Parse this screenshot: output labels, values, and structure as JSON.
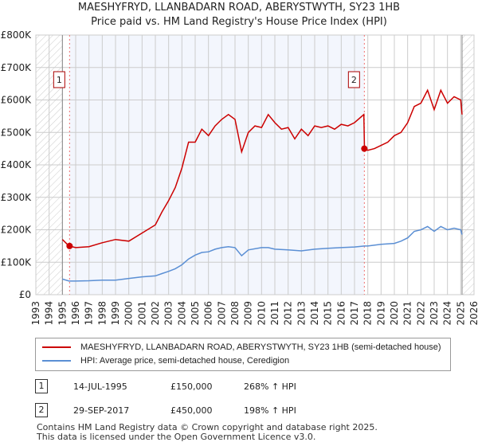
{
  "chart_data": {
    "type": "line",
    "title": "MAESHYFRYD, LLANBADARN ROAD, ABERYSTWYTH, SY23 1HB",
    "subtitle": "Price paid vs. HM Land Registry's House Price Index (HPI)",
    "xlim": [
      1993,
      2026
    ],
    "ylim": [
      0,
      800000
    ],
    "yticks": [
      0,
      100000,
      200000,
      300000,
      400000,
      500000,
      600000,
      700000,
      800000
    ],
    "ytick_labels": [
      "£0",
      "£100K",
      "£200K",
      "£300K",
      "£400K",
      "£500K",
      "£600K",
      "£700K",
      "£800K"
    ],
    "xticks": [
      "1993",
      "1994",
      "1995",
      "1996",
      "1997",
      "1998",
      "1999",
      "2000",
      "2001",
      "2002",
      "2003",
      "2004",
      "2005",
      "2006",
      "2007",
      "2008",
      "2009",
      "2010",
      "2011",
      "2012",
      "2013",
      "2014",
      "2015",
      "2016",
      "2017",
      "2018",
      "2019",
      "2020",
      "2021",
      "2022",
      "2023",
      "2024",
      "2025",
      "2026"
    ],
    "grid": true,
    "data_start": 1995.0,
    "data_end": 2025.1,
    "series": [
      {
        "name": "MAESHYFRYD, LLANBADARN ROAD, ABERYSTWYTH, SY23 1HB (semi-detached house)",
        "color": "#cc0000",
        "x": [
          1995,
          1995.5,
          1996,
          1997,
          1998,
          1999,
          2000,
          2001,
          2002,
          2002.5,
          2003,
          2003.5,
          2004,
          2004.5,
          2005,
          2005.5,
          2006,
          2006.5,
          2007,
          2007.5,
          2008,
          2008.5,
          2009,
          2009.5,
          2010,
          2010.5,
          2011,
          2011.5,
          2012,
          2012.5,
          2013,
          2013.5,
          2014,
          2014.5,
          2015,
          2015.5,
          2016,
          2016.5,
          2017,
          2017.7,
          2017.75,
          2018,
          2018.5,
          2019,
          2019.5,
          2020,
          2020.5,
          2021,
          2021.5,
          2022,
          2022.5,
          2023,
          2023.5,
          2024,
          2024.5,
          2025,
          2025.1
        ],
        "y": [
          170000,
          150000,
          145000,
          148000,
          160000,
          170000,
          165000,
          190000,
          215000,
          255000,
          290000,
          330000,
          390000,
          470000,
          470000,
          510000,
          490000,
          520000,
          540000,
          555000,
          540000,
          440000,
          500000,
          520000,
          515000,
          555000,
          530000,
          510000,
          515000,
          480000,
          510000,
          490000,
          520000,
          515000,
          520000,
          510000,
          525000,
          520000,
          530000,
          555000,
          450000,
          445000,
          450000,
          460000,
          470000,
          490000,
          500000,
          530000,
          580000,
          590000,
          630000,
          570000,
          630000,
          590000,
          610000,
          600000,
          555000
        ]
      },
      {
        "name": "HPI: Average price, semi-detached house, Ceredigion",
        "color": "#5b8fd4",
        "x": [
          1995,
          1995.5,
          1996,
          1997,
          1998,
          1999,
          2000,
          2001,
          2002,
          2002.5,
          2003,
          2003.5,
          2004,
          2004.5,
          2005,
          2005.5,
          2006,
          2006.5,
          2007,
          2007.5,
          2008,
          2008.5,
          2009,
          2010,
          2010.5,
          2011,
          2012,
          2013,
          2014,
          2015,
          2016,
          2017,
          2017.75,
          2018,
          2019,
          2020,
          2020.5,
          2021,
          2021.5,
          2022,
          2022.5,
          2023,
          2023.5,
          2024,
          2024.5,
          2025,
          2025.1
        ],
        "y": [
          48000,
          42000,
          42000,
          43000,
          45000,
          45000,
          50000,
          55000,
          58000,
          65000,
          72000,
          80000,
          92000,
          110000,
          122000,
          130000,
          132000,
          140000,
          145000,
          148000,
          145000,
          120000,
          138000,
          145000,
          145000,
          140000,
          138000,
          135000,
          140000,
          143000,
          145000,
          147000,
          150000,
          150000,
          155000,
          158000,
          165000,
          175000,
          195000,
          200000,
          210000,
          195000,
          210000,
          200000,
          205000,
          200000,
          185000
        ]
      }
    ],
    "sales": [
      {
        "id": "1",
        "date": "14-JUL-1995",
        "x": 1995.54,
        "price": 150000,
        "price_label": "£150,000",
        "hpi": "268% ↑ HPI"
      },
      {
        "id": "2",
        "date": "29-SEP-2017",
        "x": 2017.74,
        "price": 450000,
        "price_label": "£450,000",
        "hpi": "198% ↑ HPI"
      }
    ]
  },
  "footer": {
    "line1": "Contains HM Land Registry data © Crown copyright and database right 2025.",
    "line2": "This data is licensed under the Open Government Licence v3.0."
  }
}
